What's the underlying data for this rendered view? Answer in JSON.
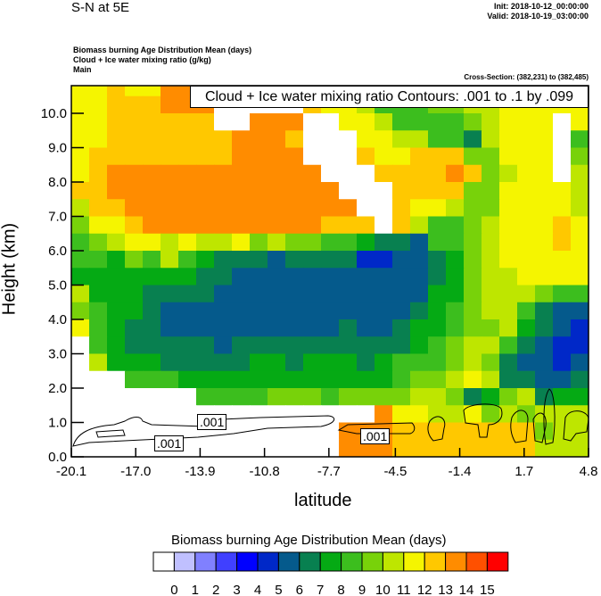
{
  "header": {
    "title": "S-N at 5E",
    "init": "Init: 2018-10-12_00:00:00",
    "valid": "Valid: 2018-10-19_03:00:00",
    "fields": [
      "Biomass burning Age Distribution Mean   (days)",
      "Cloud + Ice water mixing ratio   (g/kg)",
      "Main"
    ],
    "cross_section": "Cross-Section: (382,231) to (382,485)"
  },
  "chart_data": {
    "type": "heatmap",
    "title": "S-N at 5E",
    "xlabel": "latitude",
    "ylabel": "Height (km)",
    "xlim": [
      -20.1,
      4.8
    ],
    "ylim": [
      0.0,
      10.8
    ],
    "x_ticks": [
      "-20.1",
      "-17.0",
      "-13.9",
      "-10.8",
      "-7.7",
      "-4.5",
      "-1.4",
      "1.7",
      "4.8"
    ],
    "y_ticks": [
      "0.0",
      "1.0",
      "2.0",
      "3.0",
      "4.0",
      "5.0",
      "6.0",
      "7.0",
      "8.0",
      "9.0",
      "10.0"
    ],
    "grid_note": "values = lower bound of colour bin in days (-1 = missing/white); rows top (10.5-11 km) to bottom (0-0.5 km), 29 columns south to north",
    "rows_km_step": 0.5,
    "z": [
      [
        11,
        11,
        12,
        11,
        11,
        13,
        13,
        13,
        13,
        -1,
        -1,
        -1,
        -1,
        12,
        12,
        11,
        11,
        10,
        8,
        8,
        9,
        10,
        11,
        11,
        11,
        11,
        11,
        11,
        11
      ],
      [
        11,
        11,
        12,
        12,
        12,
        13,
        13,
        13,
        -1,
        -1,
        -1,
        -1,
        -1,
        12,
        11,
        11,
        10,
        8,
        8,
        8,
        9,
        9,
        10,
        10,
        11,
        11,
        11,
        11,
        11
      ],
      [
        11,
        11,
        12,
        12,
        12,
        12,
        12,
        12,
        -1,
        -1,
        13,
        13,
        13,
        -1,
        -1,
        11,
        11,
        10,
        8,
        8,
        8,
        8,
        9,
        10,
        11,
        11,
        11,
        -1,
        11
      ],
      [
        11,
        11,
        12,
        12,
        12,
        12,
        12,
        12,
        12,
        13,
        13,
        13,
        12,
        -1,
        -1,
        -1,
        11,
        11,
        10,
        10,
        8,
        8,
        6,
        10,
        11,
        11,
        11,
        -1,
        8
      ],
      [
        11,
        12,
        12,
        12,
        12,
        12,
        12,
        12,
        12,
        13,
        13,
        13,
        13,
        -1,
        -1,
        -1,
        12,
        11,
        11,
        12,
        12,
        12,
        9,
        9,
        11,
        11,
        11,
        -1,
        9
      ],
      [
        11,
        12,
        13,
        13,
        13,
        13,
        13,
        13,
        13,
        13,
        13,
        13,
        13,
        13,
        -1,
        -1,
        -1,
        12,
        12,
        12,
        12,
        13,
        12,
        9,
        10,
        11,
        11,
        -1,
        10
      ],
      [
        12,
        12,
        13,
        13,
        13,
        13,
        13,
        13,
        13,
        13,
        13,
        13,
        13,
        13,
        13,
        -1,
        -1,
        -1,
        12,
        12,
        12,
        12,
        9,
        9,
        11,
        11,
        11,
        11,
        10
      ],
      [
        10,
        12,
        12,
        13,
        13,
        13,
        13,
        13,
        13,
        13,
        13,
        13,
        13,
        13,
        13,
        13,
        -1,
        -1,
        12,
        11,
        11,
        10,
        9,
        9,
        11,
        11,
        11,
        11,
        10
      ],
      [
        9,
        11,
        11,
        12,
        13,
        13,
        13,
        13,
        13,
        13,
        13,
        13,
        13,
        13,
        12,
        12,
        12,
        -1,
        12,
        10,
        8,
        8,
        9,
        10,
        11,
        11,
        11,
        12,
        11
      ],
      [
        8,
        9,
        10,
        11,
        11,
        10,
        11,
        10,
        10,
        11,
        9,
        10,
        9,
        9,
        8,
        8,
        7,
        6,
        6,
        5,
        8,
        8,
        9,
        10,
        11,
        11,
        11,
        12,
        11
      ],
      [
        8,
        8,
        7,
        9,
        8,
        10,
        8,
        7,
        6,
        6,
        6,
        5,
        6,
        6,
        6,
        6,
        4,
        4,
        5,
        5,
        6,
        7,
        9,
        10,
        11,
        11,
        11,
        11,
        11
      ],
      [
        7,
        7,
        7,
        7,
        7,
        7,
        7,
        6,
        6,
        5,
        5,
        5,
        5,
        5,
        5,
        5,
        5,
        5,
        5,
        5,
        6,
        7,
        9,
        10,
        10,
        11,
        11,
        11,
        11
      ],
      [
        10,
        7,
        7,
        7,
        6,
        6,
        6,
        6,
        5,
        5,
        5,
        5,
        5,
        5,
        5,
        5,
        5,
        5,
        5,
        5,
        7,
        7,
        9,
        10,
        10,
        10,
        9,
        8,
        8
      ],
      [
        9,
        8,
        7,
        7,
        6,
        5,
        5,
        5,
        5,
        5,
        5,
        5,
        5,
        5,
        5,
        5,
        5,
        5,
        5,
        6,
        7,
        8,
        9,
        10,
        10,
        8,
        6,
        5,
        5
      ],
      [
        11,
        8,
        7,
        6,
        6,
        5,
        5,
        5,
        5,
        5,
        5,
        5,
        5,
        5,
        5,
        6,
        5,
        5,
        6,
        7,
        7,
        8,
        9,
        9,
        10,
        7,
        6,
        5,
        4
      ],
      [
        -1,
        8,
        7,
        6,
        6,
        6,
        6,
        6,
        5,
        6,
        6,
        6,
        6,
        6,
        6,
        6,
        6,
        6,
        6,
        7,
        8,
        9,
        10,
        10,
        8,
        6,
        5,
        4,
        4
      ],
      [
        -1,
        10,
        7,
        7,
        7,
        6,
        6,
        6,
        6,
        6,
        7,
        7,
        6,
        7,
        7,
        7,
        6,
        7,
        8,
        8,
        8,
        9,
        10,
        9,
        6,
        5,
        5,
        4,
        5
      ],
      [
        -1,
        -1,
        -1,
        8,
        8,
        8,
        7,
        7,
        7,
        7,
        7,
        7,
        7,
        7,
        7,
        7,
        7,
        7,
        8,
        9,
        9,
        10,
        11,
        10,
        6,
        6,
        5,
        5,
        6
      ],
      [
        -1,
        -1,
        -1,
        -1,
        -1,
        -1,
        -1,
        8,
        8,
        8,
        8,
        9,
        9,
        9,
        8,
        9,
        9,
        9,
        9,
        10,
        10,
        9,
        6,
        7,
        9,
        10,
        6,
        7,
        7
      ],
      [
        -1,
        -1,
        -1,
        -1,
        -1,
        -1,
        -1,
        -1,
        -1,
        -1,
        -1,
        -1,
        -1,
        -1,
        -1,
        -1,
        -1,
        13,
        11,
        11,
        10,
        10,
        11,
        9,
        10,
        9,
        10,
        10,
        10
      ],
      [
        -1,
        -1,
        -1,
        -1,
        -1,
        -1,
        -1,
        -1,
        -1,
        -1,
        -1,
        -1,
        -1,
        -1,
        -1,
        13,
        13,
        13,
        12,
        12,
        12,
        12,
        12,
        12,
        12,
        12,
        9,
        10,
        10
      ],
      [
        -1,
        -1,
        -1,
        -1,
        -1,
        -1,
        -1,
        -1,
        -1,
        -1,
        -1,
        -1,
        -1,
        -1,
        -1,
        13,
        13,
        13,
        12,
        12,
        12,
        12,
        12,
        12,
        12,
        12,
        10,
        10,
        10
      ]
    ],
    "contour": {
      "title": "Cloud + Ice water mixing ratio Contours: .001 to .1 by .099",
      "labels": [
        ".001",
        ".001",
        ".001"
      ]
    },
    "colorbar": {
      "title": "Biomass burning Age Distribution Mean  (days)",
      "labels": [
        "0",
        "1",
        "2",
        "3",
        "4",
        "5",
        "6",
        "7",
        "8",
        "9",
        "10",
        "11",
        "12",
        "13",
        "14",
        "15"
      ],
      "colors": [
        "#ffffff",
        "#c0c0ff",
        "#8080ff",
        "#4040ff",
        "#0000ff",
        "#0028c8",
        "#055a8c",
        "#088050",
        "#05aa14",
        "#3cbe1e",
        "#78d20a",
        "#bee600",
        "#f5f500",
        "#ffc800",
        "#ff8c00",
        "#ff5000",
        "#ff0000"
      ]
    }
  }
}
